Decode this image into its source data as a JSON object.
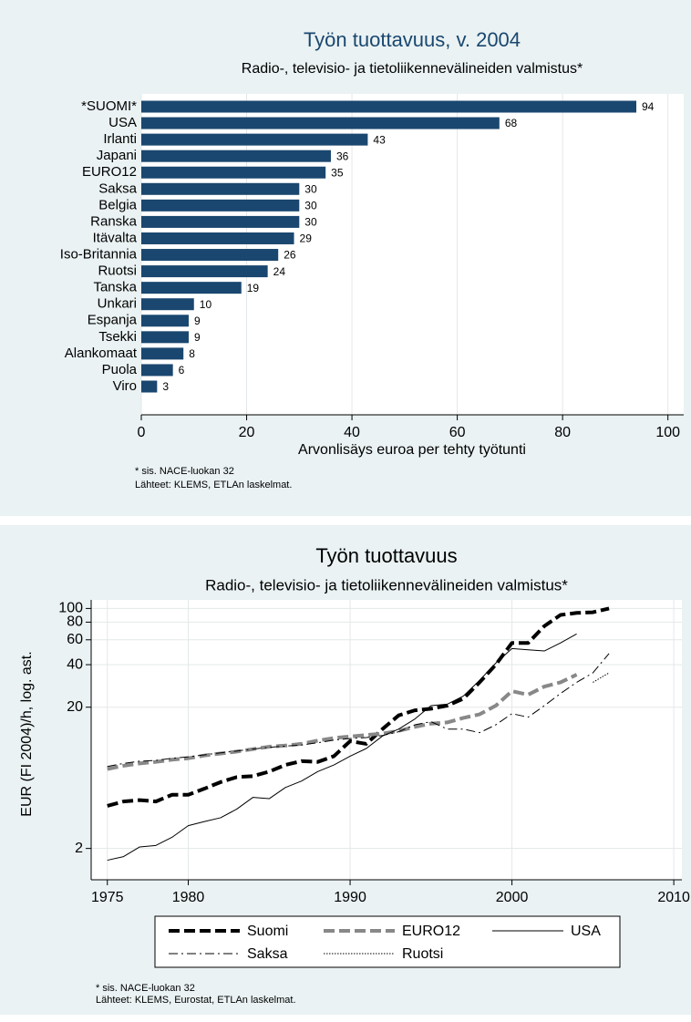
{
  "chart_data": [
    {
      "type": "barh",
      "title": "Työn tuottavuus, v. 2004",
      "subtitle": "Radio-, televisio- ja tietoliikennevälineiden valmistus*",
      "x_label": "Arvonlisäys euroa per tehty työtunti",
      "notes": [
        "* sis. NACE-luokan 32",
        "Lähteet: KLEMS, ETLAn laskelmat."
      ],
      "categories": [
        "*SUOMI*",
        "USA",
        "Irlanti",
        "Japani",
        "EURO12",
        "Saksa",
        "Belgia",
        "Ranska",
        "Itävalta",
        "Iso-Britannia",
        "Ruotsi",
        "Tanska",
        "Unkari",
        "Espanja",
        "Tsekki",
        "Alankomaat",
        "Puola",
        "Viro"
      ],
      "values": [
        94,
        68,
        43,
        36,
        35,
        30,
        30,
        30,
        29,
        26,
        24,
        19,
        10,
        9,
        9,
        8,
        6,
        3
      ],
      "color": "#1a476f",
      "xlim": [
        0,
        103
      ],
      "xticks": [
        0,
        20,
        40,
        60,
        80,
        100
      ],
      "grid": true
    },
    {
      "type": "line",
      "title": "Työn tuottavuus",
      "subtitle": "Radio-, televisio- ja tietoliikennevälineiden valmistus*",
      "y_label": "EUR (FI 2004)/h, log. ast.",
      "notes": [
        "* sis. NACE-luokan 32",
        "Lähteet: KLEMS, Eurostat, ETLAn laskelmat."
      ],
      "x": [
        1975,
        1976,
        1977,
        1978,
        1979,
        1980,
        1981,
        1982,
        1983,
        1984,
        1985,
        1986,
        1987,
        1988,
        1989,
        1990,
        1991,
        1992,
        1993,
        1994,
        1995,
        1996,
        1997,
        1998,
        1999,
        2000,
        2001,
        2002,
        2003,
        2004,
        2005,
        2006
      ],
      "series": [
        {
          "name": "Suomi",
          "color": "#000000",
          "line_style": "dash",
          "line_width": "thick",
          "values": [
            4.0,
            4.3,
            4.4,
            4.3,
            4.8,
            4.8,
            5.3,
            5.9,
            6.4,
            6.5,
            7.0,
            7.8,
            8.3,
            8.2,
            9.0,
            11.5,
            11.0,
            14.0,
            17.5,
            19.0,
            19.5,
            20.5,
            23,
            30,
            40,
            57,
            57,
            75,
            90,
            93,
            94,
            100
          ]
        },
        {
          "name": "EURO12",
          "color": "#888888",
          "line_style": "dash",
          "line_width": "thick",
          "values": [
            7.3,
            7.7,
            8.0,
            8.2,
            8.5,
            8.7,
            9.1,
            9.4,
            9.7,
            10.1,
            10.5,
            10.7,
            11.0,
            11.6,
            12.1,
            12.4,
            12.7,
            13.0,
            13.6,
            14.5,
            15.3,
            15.6,
            16.8,
            17.8,
            20.5,
            26,
            24.5,
            28,
            30,
            34,
            null,
            null
          ]
        },
        {
          "name": "USA",
          "color": "#000000",
          "line_style": "solid",
          "line_width": "thin",
          "values": [
            1.65,
            1.75,
            2.05,
            2.1,
            2.4,
            2.9,
            3.1,
            3.3,
            3.8,
            4.6,
            4.5,
            5.4,
            6.0,
            7.0,
            7.8,
            9.0,
            10.2,
            12.5,
            14.0,
            16.5,
            20.5,
            21,
            24,
            31,
            41,
            52,
            51,
            50,
            57,
            66,
            null,
            null
          ]
        },
        {
          "name": "Saksa",
          "color": "#000000",
          "line_style": "dash-dot",
          "line_width": "thin",
          "values": [
            7.6,
            8.0,
            8.3,
            8.4,
            8.7,
            8.9,
            9.2,
            9.5,
            9.8,
            10.1,
            10.4,
            10.6,
            10.8,
            11.2,
            11.7,
            12.0,
            12.2,
            12.6,
            13.4,
            15.0,
            15.8,
            14.0,
            14.0,
            13.2,
            15.0,
            18.0,
            17.0,
            20.5,
            25,
            30,
            35,
            48
          ]
        },
        {
          "name": "Ruotsi",
          "color": "#000000",
          "line_style": "dot",
          "line_width": "thin",
          "values": [
            null,
            null,
            null,
            null,
            null,
            null,
            null,
            null,
            null,
            null,
            null,
            null,
            null,
            null,
            null,
            null,
            null,
            null,
            null,
            null,
            null,
            null,
            null,
            null,
            null,
            null,
            null,
            null,
            null,
            null,
            30,
            35
          ]
        }
      ],
      "xlim": [
        1974,
        2010.5
      ],
      "xticks": [
        1975,
        1980,
        1990,
        2000,
        2010
      ],
      "ylim": [
        1.2,
        115
      ],
      "yticks": [
        2,
        20,
        40,
        60,
        80,
        100
      ],
      "y_scale": "log",
      "grid": true,
      "legend": "bottom"
    }
  ]
}
